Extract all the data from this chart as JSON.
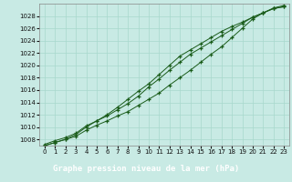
{
  "xlabel": "Graphe pression niveau de la mer (hPa)",
  "bg_color": "#c8eae4",
  "plot_bg_color": "#c8eae4",
  "label_bg_color": "#2d6e2d",
  "label_fg_color": "#ffffff",
  "line_color": "#1a5c1a",
  "grid_color": "#a8d8cc",
  "xlim": [
    -0.5,
    23.5
  ],
  "ylim": [
    1007.0,
    1030.0
  ],
  "yticks": [
    1008,
    1010,
    1012,
    1014,
    1016,
    1018,
    1020,
    1022,
    1024,
    1026,
    1028
  ],
  "xticks": [
    0,
    1,
    2,
    3,
    4,
    5,
    6,
    7,
    8,
    9,
    10,
    11,
    12,
    13,
    14,
    15,
    16,
    17,
    18,
    19,
    20,
    21,
    22,
    23
  ],
  "line1_x": [
    0,
    1,
    2,
    3,
    4,
    5,
    6,
    7,
    8,
    9,
    10,
    11,
    12,
    13,
    14,
    15,
    16,
    17,
    18,
    19,
    20,
    21,
    22,
    23
  ],
  "line1_y": [
    1007.2,
    1007.8,
    1008.3,
    1009.0,
    1010.2,
    1011.0,
    1011.8,
    1012.8,
    1013.8,
    1015.0,
    1016.5,
    1017.8,
    1019.2,
    1020.5,
    1021.8,
    1022.8,
    1023.8,
    1024.8,
    1025.8,
    1026.8,
    1027.8,
    1028.5,
    1029.2,
    1029.5
  ],
  "line2_x": [
    0,
    1,
    2,
    3,
    4,
    5,
    6,
    7,
    8,
    9,
    10,
    11,
    12,
    13,
    14,
    15,
    16,
    17,
    18,
    19,
    20,
    21,
    22,
    23
  ],
  "line2_y": [
    1007.0,
    1007.5,
    1008.0,
    1008.8,
    1010.0,
    1011.0,
    1012.0,
    1013.2,
    1014.5,
    1015.8,
    1017.0,
    1018.5,
    1020.0,
    1021.5,
    1022.5,
    1023.5,
    1024.5,
    1025.5,
    1026.3,
    1027.0,
    1027.8,
    1028.5,
    1029.3,
    1029.7
  ],
  "line3_x": [
    0,
    1,
    2,
    3,
    4,
    5,
    6,
    7,
    8,
    9,
    10,
    11,
    12,
    13,
    14,
    15,
    16,
    17,
    18,
    19,
    20,
    21,
    22,
    23
  ],
  "line3_y": [
    1007.0,
    1007.5,
    1008.0,
    1008.5,
    1009.5,
    1010.3,
    1011.0,
    1011.8,
    1012.5,
    1013.5,
    1014.5,
    1015.5,
    1016.8,
    1018.0,
    1019.2,
    1020.5,
    1021.8,
    1023.0,
    1024.5,
    1026.0,
    1027.5,
    1028.5,
    1029.2,
    1029.5
  ]
}
